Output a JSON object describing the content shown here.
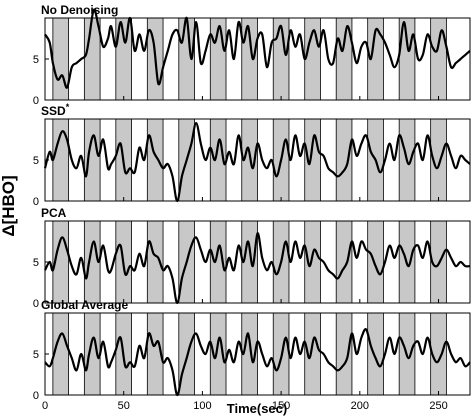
{
  "chart_data": {
    "type": "line",
    "xlabel": "Time(sec)",
    "ylabel": "Δ[HBO]",
    "xlim": [
      0,
      270
    ],
    "x_ticks": [
      "0",
      "50",
      "100",
      "150",
      "200",
      "250"
    ],
    "x_tick_values": [
      0,
      50,
      100,
      150,
      200,
      250
    ],
    "stimulus_blocks": [
      [
        5,
        15
      ],
      [
        25,
        35
      ],
      [
        45,
        55
      ],
      [
        65,
        75
      ],
      [
        85,
        95
      ],
      [
        105,
        115
      ],
      [
        125,
        135
      ],
      [
        145,
        155
      ],
      [
        165,
        175
      ],
      [
        185,
        195
      ],
      [
        205,
        215
      ],
      [
        225,
        235
      ],
      [
        245,
        255
      ]
    ],
    "block_color": "#c8c8c8",
    "line_color": "#000000",
    "panels": [
      {
        "title": "No Denoising",
        "superscript": "",
        "ylim": [
          0,
          10
        ],
        "y_ticks": [
          "0",
          "5"
        ],
        "y_tick_values": [
          0,
          5
        ],
        "x": [
          0,
          3,
          5,
          8,
          11,
          14,
          17,
          20,
          23,
          26,
          28,
          31,
          34,
          37,
          40,
          42,
          45,
          48,
          51,
          54,
          57,
          60,
          63,
          66,
          69,
          72,
          75,
          78,
          81,
          84,
          87,
          90,
          93,
          96,
          99,
          102,
          105,
          108,
          111,
          114,
          117,
          120,
          123,
          126,
          129,
          132,
          135,
          138,
          141,
          144,
          147,
          150,
          153,
          156,
          159,
          162,
          165,
          168,
          171,
          174,
          177,
          180,
          183,
          186,
          189,
          192,
          195,
          198,
          201,
          204,
          207,
          210,
          213,
          216,
          219,
          222,
          225,
          228,
          231,
          234,
          237,
          240,
          243,
          246,
          249,
          252,
          255,
          258,
          261,
          264,
          267,
          270
        ],
        "values": [
          8.0,
          7.0,
          4.5,
          2.5,
          3.0,
          1.5,
          4.0,
          4.5,
          5.0,
          5.5,
          7.5,
          11.0,
          9.0,
          6.5,
          7.5,
          9.0,
          6.5,
          9.5,
          7.0,
          10.0,
          6.0,
          8.0,
          6.0,
          8.5,
          7.0,
          2.0,
          4.0,
          6.0,
          8.0,
          8.5,
          7.0,
          10.0,
          5.0,
          9.5,
          4.5,
          6.0,
          8.0,
          7.0,
          9.0,
          6.0,
          8.5,
          5.0,
          9.5,
          7.0,
          9.0,
          5.0,
          7.5,
          8.0,
          4.0,
          7.0,
          7.5,
          9.0,
          5.5,
          8.5,
          6.5,
          8.0,
          5.0,
          7.0,
          8.5,
          6.5,
          8.5,
          5.0,
          4.5,
          7.5,
          6.0,
          9.0,
          7.0,
          4.5,
          6.5,
          7.0,
          5.0,
          8.5,
          8.0,
          7.0,
          5.5,
          4.0,
          5.5,
          9.5,
          6.0,
          8.0,
          5.0,
          5.5,
          8.0,
          6.5,
          6.0,
          8.5,
          6.5,
          4.0,
          4.5,
          5.0,
          5.5,
          6.0
        ]
      },
      {
        "title": "SSD",
        "superscript": "*",
        "ylim": [
          0,
          10
        ],
        "y_ticks": [
          "0",
          "5"
        ],
        "y_tick_values": [
          0,
          5
        ],
        "x": [
          0,
          3,
          5,
          8,
          11,
          14,
          17,
          20,
          23,
          26,
          28,
          31,
          34,
          37,
          40,
          42,
          45,
          48,
          51,
          54,
          57,
          60,
          63,
          66,
          69,
          72,
          75,
          78,
          81,
          84,
          87,
          90,
          93,
          96,
          99,
          102,
          105,
          108,
          111,
          114,
          117,
          120,
          123,
          126,
          129,
          132,
          135,
          138,
          141,
          144,
          147,
          150,
          153,
          156,
          159,
          162,
          165,
          168,
          171,
          174,
          177,
          180,
          183,
          186,
          189,
          192,
          195,
          198,
          201,
          204,
          207,
          210,
          213,
          216,
          219,
          222,
          225,
          228,
          231,
          234,
          237,
          240,
          243,
          246,
          249,
          252,
          255,
          258,
          261,
          264,
          267,
          270
        ],
        "values": [
          4.0,
          6.0,
          5.0,
          7.0,
          8.5,
          7.5,
          5.0,
          4.0,
          5.5,
          3.0,
          6.0,
          8.0,
          5.5,
          7.5,
          4.0,
          4.5,
          5.5,
          7.0,
          3.5,
          4.0,
          3.5,
          6.5,
          5.0,
          8.0,
          6.0,
          5.0,
          4.0,
          4.5,
          3.0,
          0.0,
          3.0,
          5.0,
          7.0,
          9.5,
          7.0,
          5.0,
          6.5,
          5.0,
          7.5,
          4.5,
          6.0,
          4.5,
          8.0,
          5.0,
          6.5,
          4.0,
          7.0,
          5.0,
          4.0,
          5.0,
          3.0,
          5.0,
          7.5,
          5.0,
          8.0,
          5.5,
          7.0,
          4.5,
          8.0,
          6.0,
          5.5,
          4.0,
          3.5,
          3.0,
          3.5,
          4.5,
          7.5,
          5.5,
          7.0,
          8.0,
          6.0,
          5.0,
          3.5,
          5.0,
          7.0,
          5.0,
          8.0,
          6.5,
          4.5,
          6.0,
          7.0,
          5.0,
          8.0,
          5.5,
          4.0,
          5.5,
          7.0,
          5.5,
          4.0,
          5.5,
          5.0,
          4.5
        ]
      },
      {
        "title": "PCA",
        "superscript": "",
        "ylim": [
          0,
          10
        ],
        "y_ticks": [
          "0",
          "5"
        ],
        "y_tick_values": [
          0,
          5
        ],
        "x": [
          0,
          3,
          5,
          8,
          11,
          14,
          17,
          20,
          23,
          26,
          28,
          31,
          34,
          37,
          40,
          42,
          45,
          48,
          51,
          54,
          57,
          60,
          63,
          66,
          69,
          72,
          75,
          78,
          81,
          84,
          87,
          90,
          93,
          96,
          99,
          102,
          105,
          108,
          111,
          114,
          117,
          120,
          123,
          126,
          129,
          132,
          135,
          138,
          141,
          144,
          147,
          150,
          153,
          156,
          159,
          162,
          165,
          168,
          171,
          174,
          177,
          180,
          183,
          186,
          189,
          192,
          195,
          198,
          201,
          204,
          207,
          210,
          213,
          216,
          219,
          222,
          225,
          228,
          231,
          234,
          237,
          240,
          243,
          246,
          249,
          252,
          255,
          258,
          261,
          264,
          267,
          270
        ],
        "values": [
          4.0,
          5.0,
          4.0,
          6.5,
          8.0,
          6.5,
          4.5,
          3.5,
          5.5,
          3.0,
          5.0,
          7.5,
          5.0,
          7.0,
          4.0,
          4.0,
          6.0,
          7.0,
          3.5,
          4.5,
          4.0,
          6.0,
          4.5,
          7.5,
          6.0,
          5.5,
          4.0,
          4.5,
          3.0,
          0.0,
          3.0,
          5.0,
          7.0,
          8.0,
          6.5,
          5.0,
          6.5,
          5.0,
          7.0,
          4.0,
          5.5,
          4.0,
          7.0,
          5.0,
          7.5,
          4.5,
          8.5,
          5.5,
          4.0,
          5.0,
          3.5,
          5.0,
          7.5,
          5.0,
          7.5,
          5.5,
          7.0,
          4.5,
          6.5,
          5.5,
          5.0,
          4.0,
          3.5,
          3.0,
          4.0,
          5.0,
          7.5,
          5.5,
          7.5,
          6.5,
          6.0,
          4.5,
          3.5,
          5.0,
          7.0,
          5.5,
          7.0,
          6.0,
          4.5,
          6.5,
          7.0,
          5.5,
          7.5,
          5.0,
          4.5,
          5.5,
          6.5,
          5.5,
          4.5,
          5.0,
          4.5,
          4.5
        ]
      },
      {
        "title": "Global Average",
        "superscript": "",
        "ylim": [
          0,
          10
        ],
        "y_ticks": [
          "0",
          "5"
        ],
        "y_tick_values": [
          0,
          5
        ],
        "x": [
          0,
          3,
          5,
          8,
          11,
          14,
          17,
          20,
          23,
          26,
          28,
          31,
          34,
          37,
          40,
          42,
          45,
          48,
          51,
          54,
          57,
          60,
          63,
          66,
          69,
          72,
          75,
          78,
          81,
          84,
          87,
          90,
          93,
          96,
          99,
          102,
          105,
          108,
          111,
          114,
          117,
          120,
          123,
          126,
          129,
          132,
          135,
          138,
          141,
          144,
          147,
          150,
          153,
          156,
          159,
          162,
          165,
          168,
          171,
          174,
          177,
          180,
          183,
          186,
          189,
          192,
          195,
          198,
          201,
          204,
          207,
          210,
          213,
          216,
          219,
          222,
          225,
          228,
          231,
          234,
          237,
          240,
          243,
          246,
          249,
          252,
          255,
          258,
          261,
          264,
          267,
          270
        ],
        "values": [
          4.0,
          3.5,
          4.5,
          6.5,
          7.5,
          6.0,
          4.5,
          3.0,
          5.0,
          3.0,
          5.0,
          7.0,
          4.5,
          6.5,
          3.5,
          4.0,
          5.5,
          7.0,
          3.5,
          4.0,
          3.5,
          6.0,
          4.5,
          7.5,
          6.0,
          6.5,
          4.0,
          4.5,
          3.0,
          0.0,
          2.5,
          4.5,
          6.5,
          7.5,
          6.0,
          5.0,
          6.5,
          4.5,
          7.0,
          4.0,
          5.5,
          4.0,
          6.5,
          5.0,
          7.5,
          4.0,
          6.5,
          5.0,
          3.5,
          4.5,
          3.0,
          4.5,
          7.0,
          4.5,
          7.0,
          5.0,
          6.5,
          4.5,
          7.0,
          5.5,
          5.0,
          4.0,
          3.5,
          3.0,
          3.5,
          4.5,
          7.5,
          5.0,
          7.0,
          8.0,
          6.0,
          4.5,
          3.5,
          5.0,
          7.0,
          5.0,
          7.0,
          6.0,
          4.5,
          6.0,
          6.5,
          5.0,
          7.0,
          5.0,
          4.0,
          5.0,
          6.5,
          5.0,
          4.0,
          4.5,
          3.5,
          4.0
        ]
      }
    ]
  }
}
